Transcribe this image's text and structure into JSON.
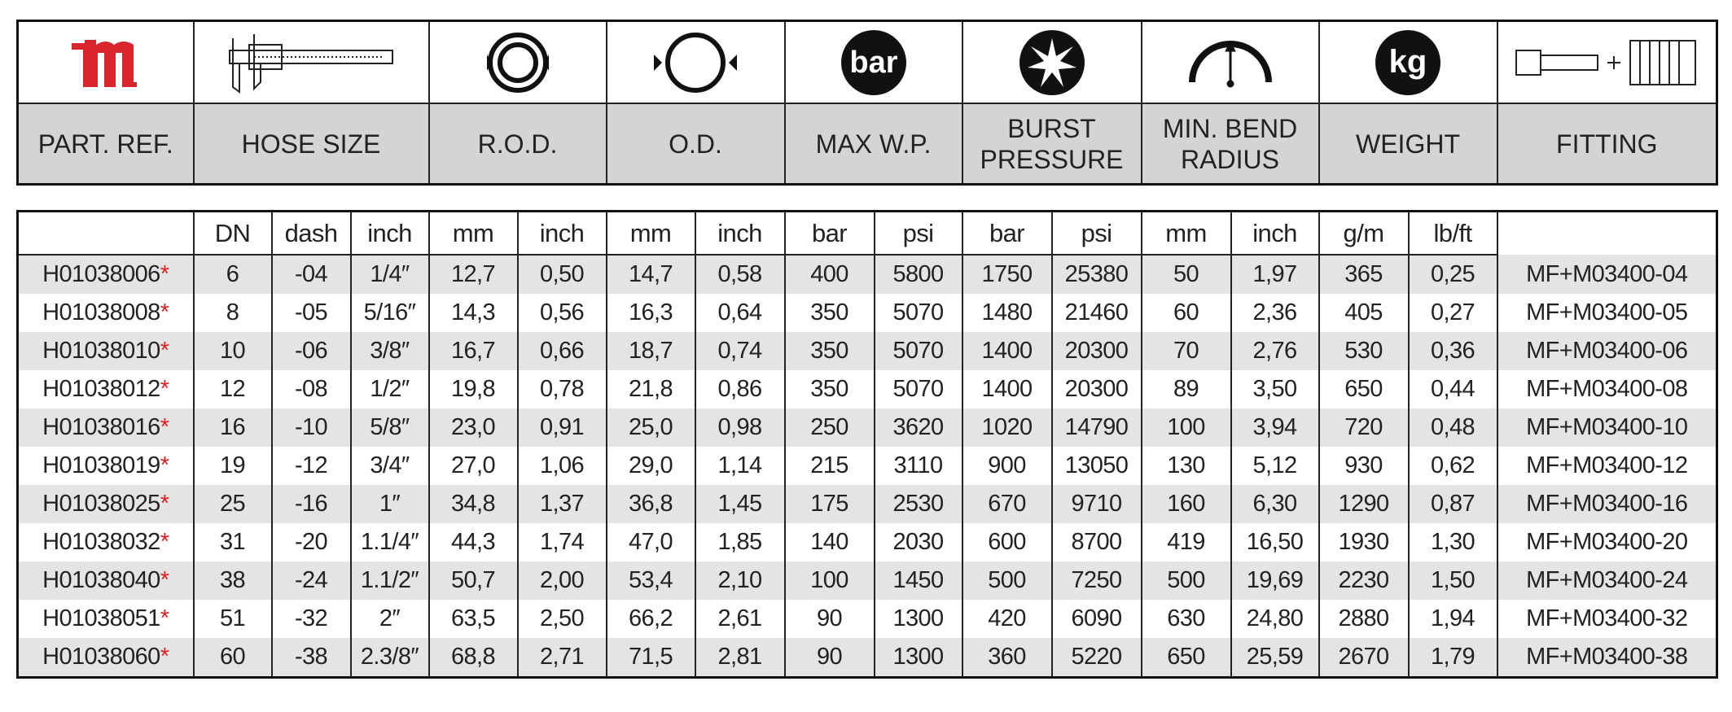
{
  "header": {
    "columns": [
      "PART. REF.",
      "HOSE SIZE",
      "R.O.D.",
      "O.D.",
      "MAX W.P.",
      "BURST PRESSURE",
      "MIN. BEND RADIUS",
      "WEIGHT",
      "FITTING"
    ],
    "icons": {
      "pressure": "bar",
      "weight": "kg"
    }
  },
  "table": {
    "asterisk": "*",
    "subheaders": [
      "DN",
      "dash",
      "inch",
      "mm",
      "inch",
      "mm",
      "inch",
      "bar",
      "psi",
      "bar",
      "psi",
      "mm",
      "inch",
      "g/m",
      "lb/ft"
    ],
    "rows": [
      [
        "H01038006",
        "6",
        "-04",
        "1/4″",
        "12,7",
        "0,50",
        "14,7",
        "0,58",
        "400",
        "5800",
        "1750",
        "25380",
        "50",
        "1,97",
        "365",
        "0,25",
        "MF+M03400-04"
      ],
      [
        "H01038008",
        "8",
        "-05",
        "5/16″",
        "14,3",
        "0,56",
        "16,3",
        "0,64",
        "350",
        "5070",
        "1480",
        "21460",
        "60",
        "2,36",
        "405",
        "0,27",
        "MF+M03400-05"
      ],
      [
        "H01038010",
        "10",
        "-06",
        "3/8″",
        "16,7",
        "0,66",
        "18,7",
        "0,74",
        "350",
        "5070",
        "1400",
        "20300",
        "70",
        "2,76",
        "530",
        "0,36",
        "MF+M03400-06"
      ],
      [
        "H01038012",
        "12",
        "-08",
        "1/2″",
        "19,8",
        "0,78",
        "21,8",
        "0,86",
        "350",
        "5070",
        "1400",
        "20300",
        "89",
        "3,50",
        "650",
        "0,44",
        "MF+M03400-08"
      ],
      [
        "H01038016",
        "16",
        "-10",
        "5/8″",
        "23,0",
        "0,91",
        "25,0",
        "0,98",
        "250",
        "3620",
        "1020",
        "14790",
        "100",
        "3,94",
        "720",
        "0,48",
        "MF+M03400-10"
      ],
      [
        "H01038019",
        "19",
        "-12",
        "3/4″",
        "27,0",
        "1,06",
        "29,0",
        "1,14",
        "215",
        "3110",
        "900",
        "13050",
        "130",
        "5,12",
        "930",
        "0,62",
        "MF+M03400-12"
      ],
      [
        "H01038025",
        "25",
        "-16",
        "1″",
        "34,8",
        "1,37",
        "36,8",
        "1,45",
        "175",
        "2530",
        "670",
        "9710",
        "160",
        "6,30",
        "1290",
        "0,87",
        "MF+M03400-16"
      ],
      [
        "H01038032",
        "31",
        "-20",
        "1.1/4″",
        "44,3",
        "1,74",
        "47,0",
        "1,85",
        "140",
        "2030",
        "600",
        "8700",
        "419",
        "16,50",
        "1930",
        "1,30",
        "MF+M03400-20"
      ],
      [
        "H01038040",
        "38",
        "-24",
        "1.1/2″",
        "50,7",
        "2,00",
        "53,4",
        "2,10",
        "100",
        "1450",
        "500",
        "7250",
        "500",
        "19,69",
        "2230",
        "1,50",
        "MF+M03400-24"
      ],
      [
        "H01038051",
        "51",
        "-32",
        "2″",
        "63,5",
        "2,50",
        "66,2",
        "2,61",
        "90",
        "1300",
        "420",
        "6090",
        "630",
        "24,80",
        "2880",
        "1,94",
        "MF+M03400-32"
      ],
      [
        "H01038060",
        "60",
        "-38",
        "2.3/8″",
        "68,8",
        "2,71",
        "71,5",
        "2,81",
        "90",
        "1300",
        "360",
        "5220",
        "650",
        "25,59",
        "2670",
        "1,79",
        "MF+M03400-38"
      ]
    ]
  }
}
